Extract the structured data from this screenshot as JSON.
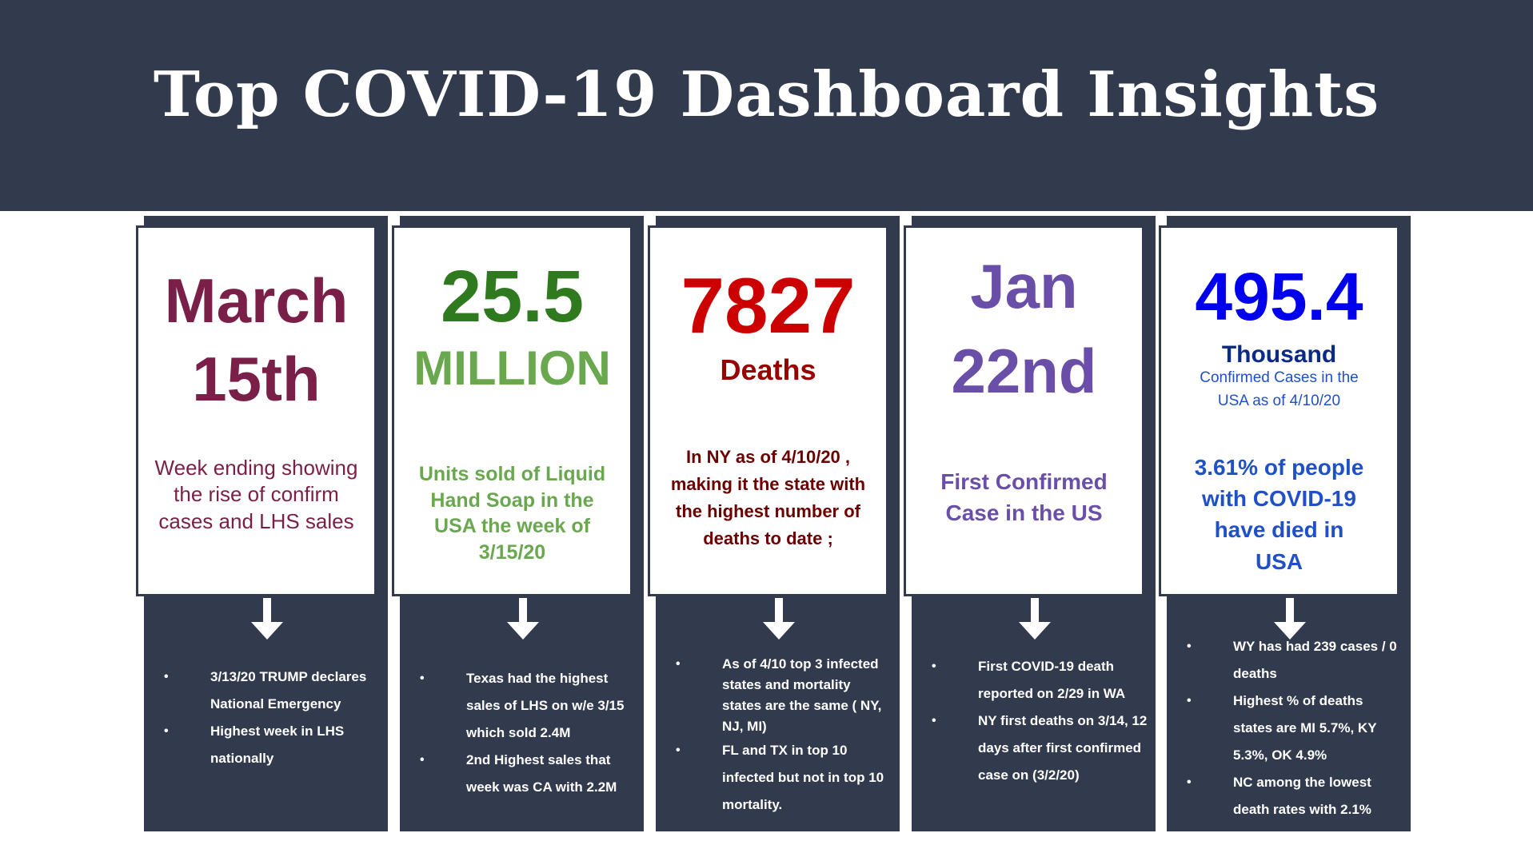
{
  "title": "Top COVID-19 Dashboard Insights",
  "cards": [
    {
      "line1": "March",
      "line2": "15th",
      "description": "Week ending showing the rise of confirm cases and LHS sales",
      "bullets": [
        " 3/13/20 TRUMP declares National Emergency",
        "Highest week in LHS nationally"
      ]
    },
    {
      "line1": "25.5",
      "line2": "MILLION",
      "description": "Units sold of Liquid Hand Soap in the USA  the week of 3/15/20",
      "bullets": [
        "Texas had the highest sales of LHS  on w/e 3/15 which  sold 2.4M",
        "2nd Highest sales that week was CA with 2.2M"
      ]
    },
    {
      "line1": "7827",
      "line2": "Deaths",
      "description": "In NY as of 4/10/20 , making it the state with the highest number of deaths to date ;",
      "bullets": [
        "As of 4/10 top 3 infected states and mortality states are the same ( NY, NJ, MI)",
        "FL and TX in top 10 infected but not in top 10 mortality."
      ]
    },
    {
      "line1": "Jan",
      "line2": "22nd",
      "description": "First Confirmed Case in the US",
      "bullets": [
        "First  COVID-19 death reported on 2/29  in WA",
        "NY  first deaths on 3/14, 12 days after first confirmed case on (3/2/20)"
      ]
    },
    {
      "line1": "495.4",
      "line2": "Thousand",
      "subtitle": "Confirmed Cases in the USA as of 4/10/20",
      "description": "3.61% of people with COVID-19 have died  in USA",
      "bullets": [
        "WY  has had 239 cases / 0 deaths",
        "Highest % of deaths states are MI 5.7%, KY 5.3%,  OK 4.9%",
        "NC among the lowest death rates with 2.1%"
      ]
    }
  ],
  "colors": {
    "header_bg": "#323a4d",
    "march": "#7a1f47",
    "soap_dark": "#2f7a1f",
    "soap_light": "#6aa84f",
    "deaths_red": "#cc0000",
    "deaths_dark": "#990000",
    "deaths_text": "#6b0000",
    "jan": "#6a4fa8",
    "cases_blue": "#0000ee",
    "cases_mid": "#2050c8",
    "cases_dark": "#0a2a8a"
  }
}
